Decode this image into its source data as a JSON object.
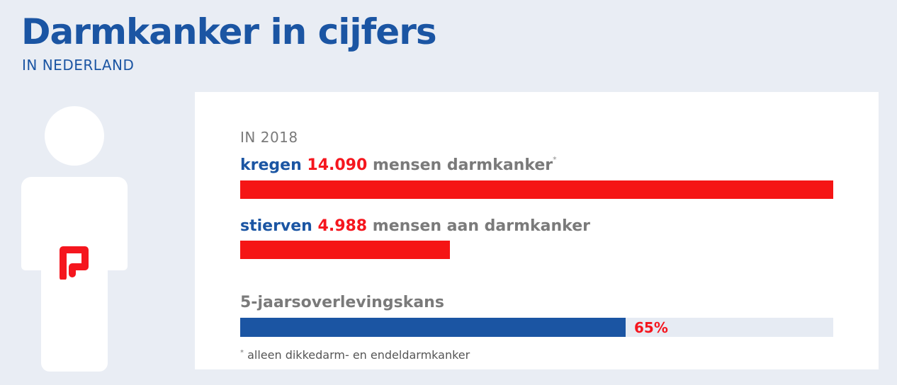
{
  "header": {
    "title": "Darmkanker in cijfers",
    "subtitle": "IN NEDERLAND"
  },
  "panel": {
    "year_label": "IN 2018",
    "footnote_marker": "*",
    "footnote": "alleen dikkedarm- en endeldarmkanker"
  },
  "chart_data": {
    "type": "bar",
    "orientation": "horizontal",
    "title": "Darmkanker in cijfers",
    "subtitle": "IN NEDERLAND",
    "period": "IN 2018",
    "bars": [
      {
        "verb": "kregen",
        "value": 14090,
        "value_label": "14.090",
        "text": "mensen darmkanker",
        "footnote_marker": "*",
        "color": "#f51515"
      },
      {
        "verb": "stierven",
        "value": 4988,
        "value_label": "4.988",
        "text": "mensen aan darmkanker",
        "color": "#f51515"
      }
    ],
    "survival": {
      "label": "5-jaarsoverlevingskans",
      "value": 65,
      "max": 100,
      "value_label": "65%",
      "color": "#1b55a3",
      "track_color": "#e6ebf3"
    },
    "footnote": "alleen dikkedarm- en endeldarmkanker"
  },
  "colors": {
    "brand_blue": "#1b55a3",
    "accent_red": "#f5161e",
    "background": "#e9edf4",
    "panel": "#ffffff"
  }
}
